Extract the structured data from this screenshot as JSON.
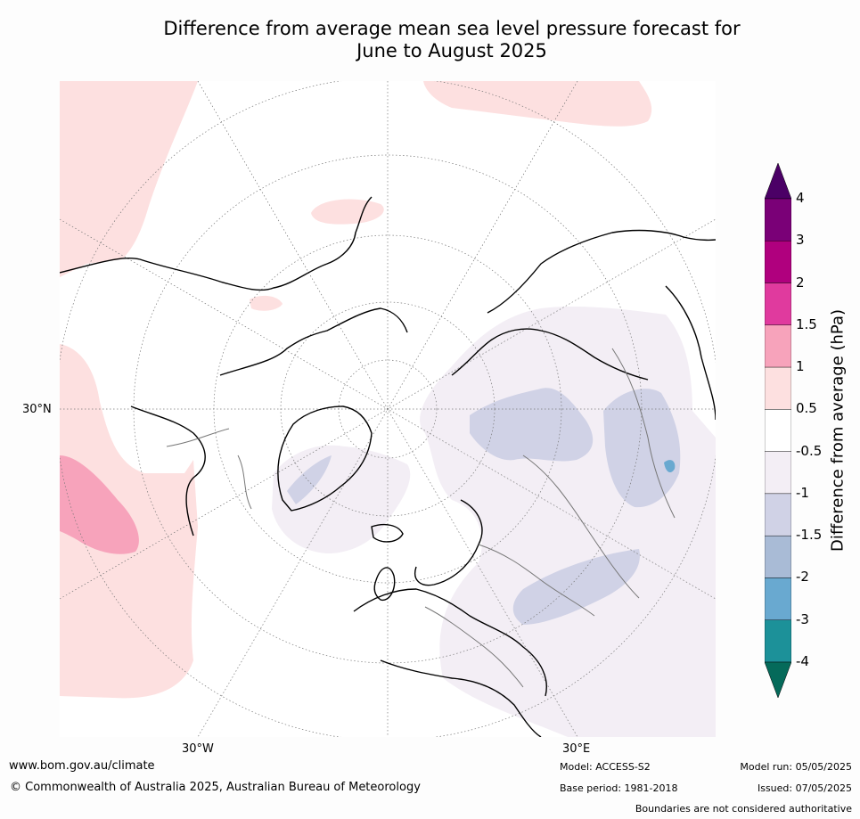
{
  "title": {
    "line1": "Difference from average mean sea level pressure forecast for",
    "line2": "June to August 2025"
  },
  "map": {
    "labels": {
      "lat_30n": "30°N",
      "lon_30w": "30°W",
      "lon_30e": "30°E"
    }
  },
  "colorbar": {
    "title": "Difference from average (hPa)",
    "ticks": [
      "4",
      "3",
      "2",
      "1.5",
      "1",
      "0.5",
      "-0.5",
      "-1",
      "-1.5",
      "-2",
      "-3",
      "-4"
    ],
    "colors": [
      "#4b0066",
      "#7a0077",
      "#b0007e",
      "#e03a9e",
      "#f7a3bb",
      "#fde0e0",
      "#ffffff",
      "#f3eef5",
      "#d0d2e6",
      "#a9bbd6",
      "#69a9d0",
      "#1c9199",
      "#056a5a"
    ]
  },
  "footer": {
    "website": "www.bom.gov.au/climate",
    "copyright": "© Commonwealth of Australia 2025, Australian Bureau of Meteorology",
    "model": "Model: ACCESS-S2",
    "base_period": "Base period: 1981-2018",
    "model_run": "Model run: 05/05/2025",
    "issued": "Issued: 07/05/2025",
    "disclaimer": "Boundaries are not considered authoritative"
  }
}
